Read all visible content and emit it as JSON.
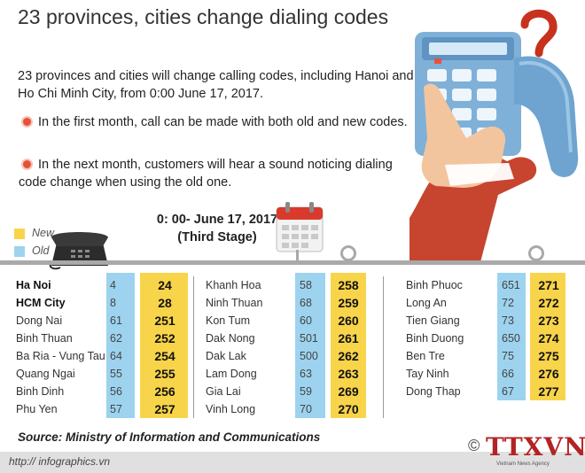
{
  "title": "23 provinces, cities change dialing codes",
  "intro": "23 provinces and cities will change calling codes, including Hanoi and Ho Chi Minh City, from 0:00 June 17, 2017.",
  "bullets": {
    "first": "In the first month, call can be made with both old and new codes.",
    "second_line1": "In the next month, customers will hear a sound noticing dialing",
    "second_line2": "code change when using the old one."
  },
  "legend": {
    "new": "New",
    "old": "Old",
    "new_color": "#f8d44a",
    "old_color": "#9dd3ee"
  },
  "stage": {
    "date": "0: 00- June 17, 2017",
    "label": "(Third Stage)"
  },
  "columns": [
    {
      "rows": [
        {
          "name": "Ha Noi",
          "old": "4",
          "new": "24",
          "bold": true
        },
        {
          "name": "HCM City",
          "old": "8",
          "new": "28",
          "bold": true
        },
        {
          "name": "Dong Nai",
          "old": "61",
          "new": "251"
        },
        {
          "name": "Binh Thuan",
          "old": "62",
          "new": "252"
        },
        {
          "name": "Ba Ria - Vung Tau",
          "old": "64",
          "new": "254"
        },
        {
          "name": "Quang Ngai",
          "old": "55",
          "new": "255"
        },
        {
          "name": "Binh Dinh",
          "old": "56",
          "new": "256"
        },
        {
          "name": "Phu Yen",
          "old": "57",
          "new": "257"
        }
      ]
    },
    {
      "rows": [
        {
          "name": "Khanh Hoa",
          "old": "58",
          "new": "258"
        },
        {
          "name": "Ninh Thuan",
          "old": "68",
          "new": "259"
        },
        {
          "name": "Kon Tum",
          "old": "60",
          "new": "260"
        },
        {
          "name": "Dak Nong",
          "old": "501",
          "new": "261"
        },
        {
          "name": "Dak Lak",
          "old": "500",
          "new": "262"
        },
        {
          "name": "Lam Dong",
          "old": "63",
          "new": "263"
        },
        {
          "name": "Gia Lai",
          "old": "59",
          "new": "269"
        },
        {
          "name": "Vinh Long",
          "old": "70",
          "new": "270"
        }
      ]
    },
    {
      "rows": [
        {
          "name": "Binh Phuoc",
          "old": "651",
          "new": "271"
        },
        {
          "name": "Long An",
          "old": "72",
          "new": "272"
        },
        {
          "name": "Tien Giang",
          "old": "73",
          "new": "273"
        },
        {
          "name": "Binh Duong",
          "old": "650",
          "new": "274"
        },
        {
          "name": "Ben Tre",
          "old": "75",
          "new": "275"
        },
        {
          "name": "Tay Ninh",
          "old": "66",
          "new": "276"
        },
        {
          "name": "Dong Thap",
          "old": "67",
          "new": "277"
        }
      ]
    }
  ],
  "source": "Source: Ministry of Information and Communications",
  "url": "http:// infographics.vn",
  "logo": "TTXVN",
  "logo_sub": "Vietnam News Agency",
  "copyright": "©",
  "icons": [
    "phone-keypad-illustration",
    "question-mark-icon",
    "desk-telephone-icon",
    "calendar-icon"
  ]
}
